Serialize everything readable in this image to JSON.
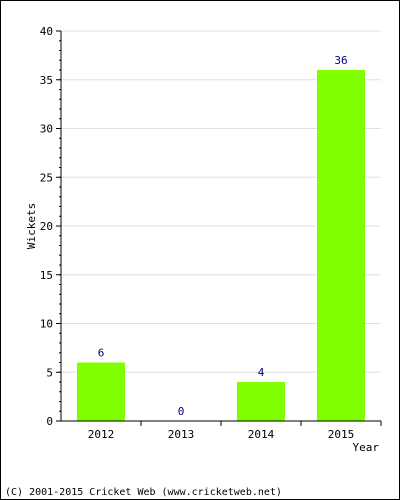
{
  "chart_data": {
    "type": "bar",
    "categories": [
      "2012",
      "2013",
      "2014",
      "2015"
    ],
    "values": [
      6,
      0,
      4,
      36
    ],
    "data_labels": [
      "6",
      "0",
      "4",
      "36"
    ],
    "xlabel": "Year",
    "ylabel": "Wickets",
    "ylim": [
      0,
      40
    ],
    "yticks": [
      0,
      5,
      10,
      15,
      20,
      25,
      30,
      35,
      40
    ],
    "ytick_labels": [
      "0",
      "5",
      "10",
      "15",
      "20",
      "25",
      "30",
      "35",
      "40"
    ],
    "minor_ticks_per_major": 5,
    "grid": true,
    "legend": "none",
    "bar_color": "#80FF00",
    "data_label_color": "#000080",
    "grid_color": "#E0E0E0"
  },
  "footer": {
    "copyright": "(C) 2001-2015 Cricket Web (www.cricketweb.net)"
  }
}
